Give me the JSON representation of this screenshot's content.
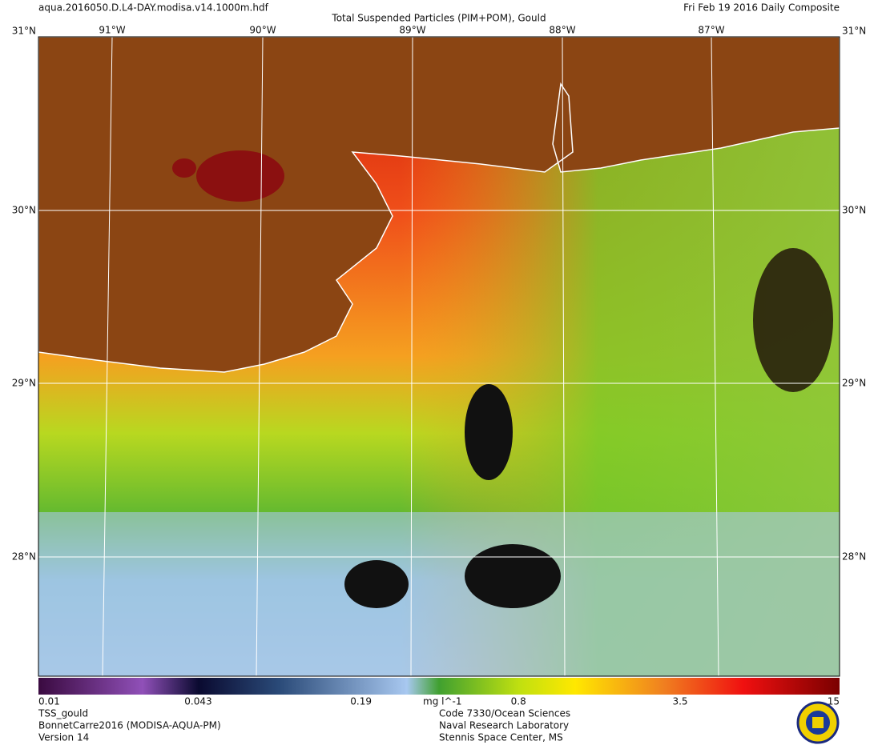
{
  "header": {
    "file": "aqua.2016050.D.L4-DAY.modisa.v14.1000m.hdf",
    "title": "Total Suspended Particles (PIM+POM), Gould",
    "date": "Fri Feb 19 2016 Daily Composite"
  },
  "graticule": {
    "lon_labels": [
      "91°W",
      "90°W",
      "89°W",
      "88°W",
      "87°W"
    ],
    "lat_labels": [
      "31°N",
      "30°N",
      "29°N",
      "28°N"
    ]
  },
  "colorbar": {
    "range": [
      0.01,
      15
    ],
    "ticks": [
      0.01,
      0.043,
      0.19,
      0.8,
      3.5,
      15
    ],
    "log_scale": true,
    "unit": "mg l^-1"
  },
  "footer": {
    "left": [
      "TSS_gould",
      "BonnetCarre2016 (MODISA-AQUA-PM)",
      "Version 14"
    ],
    "center": [
      "Code 7330/Ocean Sciences",
      "Naval Research Laboratory",
      "Stennis Space Center, MS"
    ]
  }
}
